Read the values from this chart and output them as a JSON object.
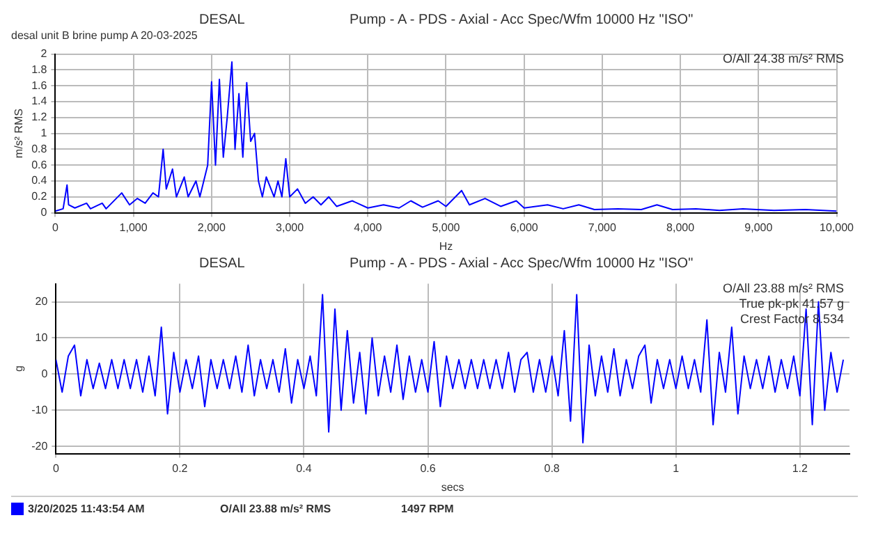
{
  "chart_data": [
    {
      "type": "line",
      "title": "DESAL",
      "subtitle": "Pump - A - PDS - Axial - Acc Spec/Wfm 10000 Hz \"ISO\"",
      "xlabel": "Hz",
      "ylabel": "m/s² RMS",
      "annotations": [
        "desal unit B brine pump A 20-03-2025",
        "O/All 24.38 m/s² RMS"
      ],
      "xlim": [
        0,
        10000
      ],
      "xticks": [
        0,
        {
          "value": 1000,
          "label": "1,000"
        },
        {
          "value": 2000,
          "label": "2,000"
        },
        {
          "value": 3000,
          "label": "3,000"
        },
        {
          "value": 4000,
          "label": "4,000"
        },
        {
          "value": 5000,
          "label": "5,000"
        },
        {
          "value": 6000,
          "label": "6,000"
        },
        {
          "value": 7000,
          "label": "7,000"
        },
        {
          "value": 8000,
          "label": "8,000"
        },
        {
          "value": 9000,
          "label": "9,000"
        },
        {
          "value": 10000,
          "label": "10,000"
        }
      ],
      "ylim": [
        0,
        2
      ],
      "yticks": [
        0,
        0.2,
        0.4,
        0.6,
        0.8,
        1,
        1.2,
        1.4,
        1.6,
        1.8,
        2
      ],
      "grid": true,
      "series": [
        {
          "color": "#0000ff",
          "x": [
            0,
            100,
            150,
            170,
            250,
            400,
            450,
            600,
            650,
            850,
            950,
            1050,
            1150,
            1250,
            1320,
            1380,
            1420,
            1500,
            1550,
            1650,
            1700,
            1800,
            1850,
            1950,
            2000,
            2050,
            2100,
            2150,
            2200,
            2260,
            2300,
            2350,
            2400,
            2450,
            2500,
            2550,
            2600,
            2650,
            2700,
            2800,
            2850,
            2900,
            2950,
            3000,
            3100,
            3200,
            3300,
            3400,
            3500,
            3600,
            3800,
            4000,
            4200,
            4400,
            4550,
            4700,
            4900,
            5000,
            5200,
            5300,
            5500,
            5700,
            5900,
            6000,
            6300,
            6500,
            6700,
            6900,
            7200,
            7500,
            7700,
            7900,
            8200,
            8500,
            8800,
            9200,
            9600,
            10000
          ],
          "values": [
            0.02,
            0.05,
            0.35,
            0.1,
            0.06,
            0.12,
            0.05,
            0.12,
            0.05,
            0.25,
            0.1,
            0.18,
            0.12,
            0.25,
            0.2,
            0.8,
            0.3,
            0.55,
            0.2,
            0.45,
            0.2,
            0.4,
            0.2,
            0.6,
            1.65,
            0.6,
            1.68,
            0.7,
            1.2,
            1.9,
            0.8,
            1.5,
            0.7,
            1.64,
            0.9,
            1.0,
            0.4,
            0.2,
            0.45,
            0.2,
            0.4,
            0.2,
            0.68,
            0.2,
            0.3,
            0.12,
            0.2,
            0.1,
            0.2,
            0.08,
            0.15,
            0.06,
            0.1,
            0.06,
            0.15,
            0.07,
            0.15,
            0.08,
            0.28,
            0.1,
            0.18,
            0.08,
            0.15,
            0.06,
            0.1,
            0.05,
            0.1,
            0.04,
            0.05,
            0.04,
            0.1,
            0.04,
            0.05,
            0.03,
            0.05,
            0.03,
            0.04,
            0.02
          ]
        }
      ]
    },
    {
      "type": "line",
      "title": "DESAL",
      "subtitle": "Pump - A - PDS - Axial - Acc Spec/Wfm 10000 Hz \"ISO\"",
      "xlabel": "secs",
      "ylabel": "g",
      "annotations": [
        "O/All 23.88 m/s² RMS",
        "True pk-pk 41.57 g",
        "Crest Factor 8.534",
        "O/All 23.88 m/s² RMS",
        "1497 RPM"
      ],
      "xlim": [
        0,
        1.28
      ],
      "xticks": [
        0,
        0.2,
        0.4,
        0.6,
        0.8,
        1,
        1.2
      ],
      "ylim": [
        -22,
        25
      ],
      "yticks": [
        -20,
        -10,
        0,
        10,
        20
      ],
      "grid": true,
      "legend": "bottom",
      "series": [
        {
          "name": "3/20/2025 11:43:54 AM",
          "color": "#0000ff",
          "x": [
            0,
            0.01,
            0.02,
            0.03,
            0.04,
            0.05,
            0.06,
            0.07,
            0.08,
            0.09,
            0.1,
            0.11,
            0.12,
            0.13,
            0.14,
            0.15,
            0.16,
            0.17,
            0.18,
            0.19,
            0.2,
            0.21,
            0.22,
            0.23,
            0.24,
            0.25,
            0.26,
            0.27,
            0.28,
            0.29,
            0.3,
            0.31,
            0.32,
            0.33,
            0.34,
            0.35,
            0.36,
            0.37,
            0.38,
            0.39,
            0.4,
            0.41,
            0.42,
            0.43,
            0.44,
            0.45,
            0.46,
            0.47,
            0.48,
            0.49,
            0.5,
            0.51,
            0.52,
            0.53,
            0.54,
            0.55,
            0.56,
            0.57,
            0.58,
            0.59,
            0.6,
            0.61,
            0.62,
            0.63,
            0.64,
            0.65,
            0.66,
            0.67,
            0.68,
            0.69,
            0.7,
            0.71,
            0.72,
            0.73,
            0.74,
            0.75,
            0.76,
            0.77,
            0.78,
            0.79,
            0.8,
            0.81,
            0.82,
            0.83,
            0.84,
            0.85,
            0.86,
            0.87,
            0.88,
            0.89,
            0.9,
            0.91,
            0.92,
            0.93,
            0.94,
            0.95,
            0.96,
            0.97,
            0.98,
            0.99,
            1,
            1.01,
            1.02,
            1.03,
            1.04,
            1.05,
            1.06,
            1.07,
            1.08,
            1.09,
            1.1,
            1.11,
            1.12,
            1.13,
            1.14,
            1.15,
            1.16,
            1.17,
            1.18,
            1.19,
            1.2,
            1.21,
            1.22,
            1.23,
            1.24,
            1.25,
            1.26,
            1.27
          ],
          "values": [
            4,
            -5,
            5,
            8,
            -6,
            4,
            -4,
            3,
            -4,
            4,
            -4,
            4,
            -4,
            4,
            -5,
            5,
            -6,
            13,
            -11,
            6,
            -5,
            4,
            -4,
            5,
            -9,
            4,
            -4,
            4,
            -4,
            5,
            -5,
            8,
            -6,
            4,
            -4,
            4,
            -5,
            7,
            -8,
            4,
            -4,
            5,
            -6,
            22,
            -16,
            18,
            -10,
            12,
            -8,
            6,
            -11,
            10,
            -6,
            5,
            -5,
            8,
            -7,
            5,
            -5,
            4,
            -5,
            9,
            -9,
            5,
            -4,
            4,
            -4,
            4,
            -4,
            4,
            -4,
            4,
            -4,
            6,
            -5,
            4,
            6,
            -5,
            4,
            -5,
            5,
            -6,
            12,
            -13,
            22,
            -19,
            8,
            -6,
            5,
            -5,
            7,
            -6,
            4,
            -4,
            5,
            8,
            -8,
            4,
            -4,
            4,
            -4,
            5,
            -4,
            4,
            -5,
            15,
            -14,
            6,
            -5,
            13,
            -11,
            5,
            -4,
            4,
            -4,
            5,
            -5,
            4,
            -4,
            5,
            -6,
            18,
            -14,
            20,
            -10,
            6,
            -5,
            4
          ]
        }
      ]
    }
  ]
}
